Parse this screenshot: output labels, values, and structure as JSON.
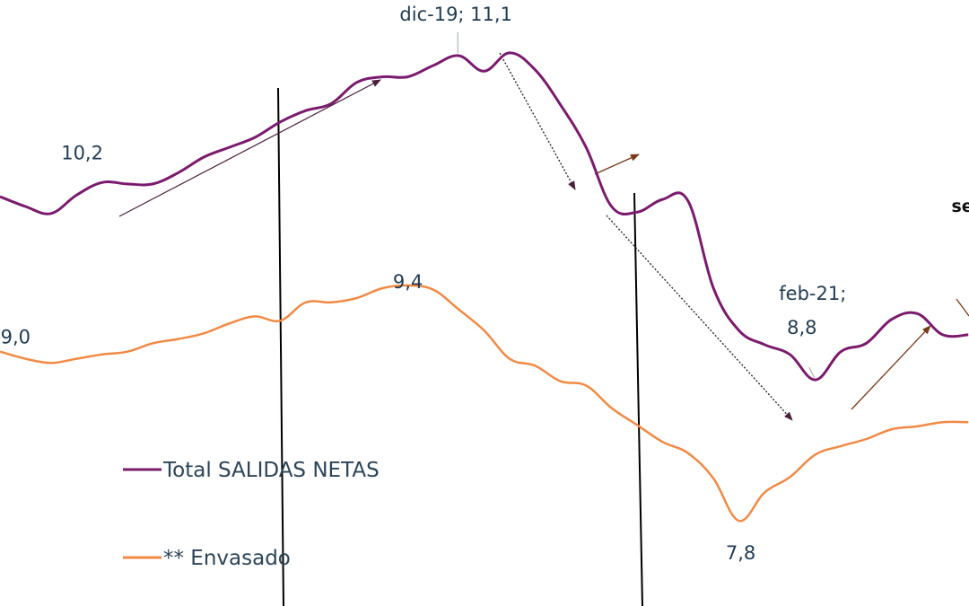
{
  "chart_data": {
    "type": "line",
    "title": "",
    "xlabel": "",
    "ylabel": "",
    "grid": false,
    "legend_position": "left-bottom",
    "ylim": [
      7.5,
      11.5
    ],
    "series": [
      {
        "name": "Total SALIDAS NETAS",
        "color": "#7a1b6e",
        "values": [
          10.1,
          10.03,
          9.98,
          10.11,
          10.2,
          10.19,
          10.19,
          10.27,
          10.38,
          10.45,
          10.52,
          10.63,
          10.71,
          10.76,
          10.91,
          10.95,
          10.95,
          11.03,
          11.1,
          10.99,
          11.12,
          11.0,
          10.75,
          10.45,
          10.03,
          9.99,
          10.08,
          10.07,
          9.45,
          9.15,
          9.05,
          8.98,
          8.8,
          9.0,
          9.06,
          9.23,
          9.27,
          9.12,
          9.12
        ]
      },
      {
        "name": "** Envasado",
        "color": "#f08a45",
        "values": [
          9.0,
          8.95,
          8.92,
          8.95,
          8.98,
          9.0,
          9.06,
          9.09,
          9.13,
          9.2,
          9.25,
          9.22,
          9.35,
          9.35,
          9.38,
          9.45,
          9.47,
          9.44,
          9.3,
          9.15,
          8.95,
          8.9,
          8.79,
          8.76,
          8.6,
          8.48,
          8.36,
          8.28,
          8.1,
          7.8,
          8.0,
          8.11,
          8.27,
          8.33,
          8.38,
          8.45,
          8.47,
          8.5,
          8.5
        ]
      }
    ],
    "annotations": [
      {
        "text": "10,2",
        "series": 0,
        "point": 4
      },
      {
        "text": "dic-19; 11,1",
        "series": 0,
        "point": 18
      },
      {
        "text": "feb-21;",
        "series": 0,
        "point": 32
      },
      {
        "text": "8,8",
        "series": 0,
        "point": 32
      },
      {
        "text": "sep-",
        "series": 0,
        "point": 38
      },
      {
        "text": "9,0",
        "series": 1,
        "point": 0
      },
      {
        "text": "9,4",
        "series": 1,
        "point": 14
      },
      {
        "text": "7,8",
        "series": 1,
        "point": 29
      }
    ]
  }
}
